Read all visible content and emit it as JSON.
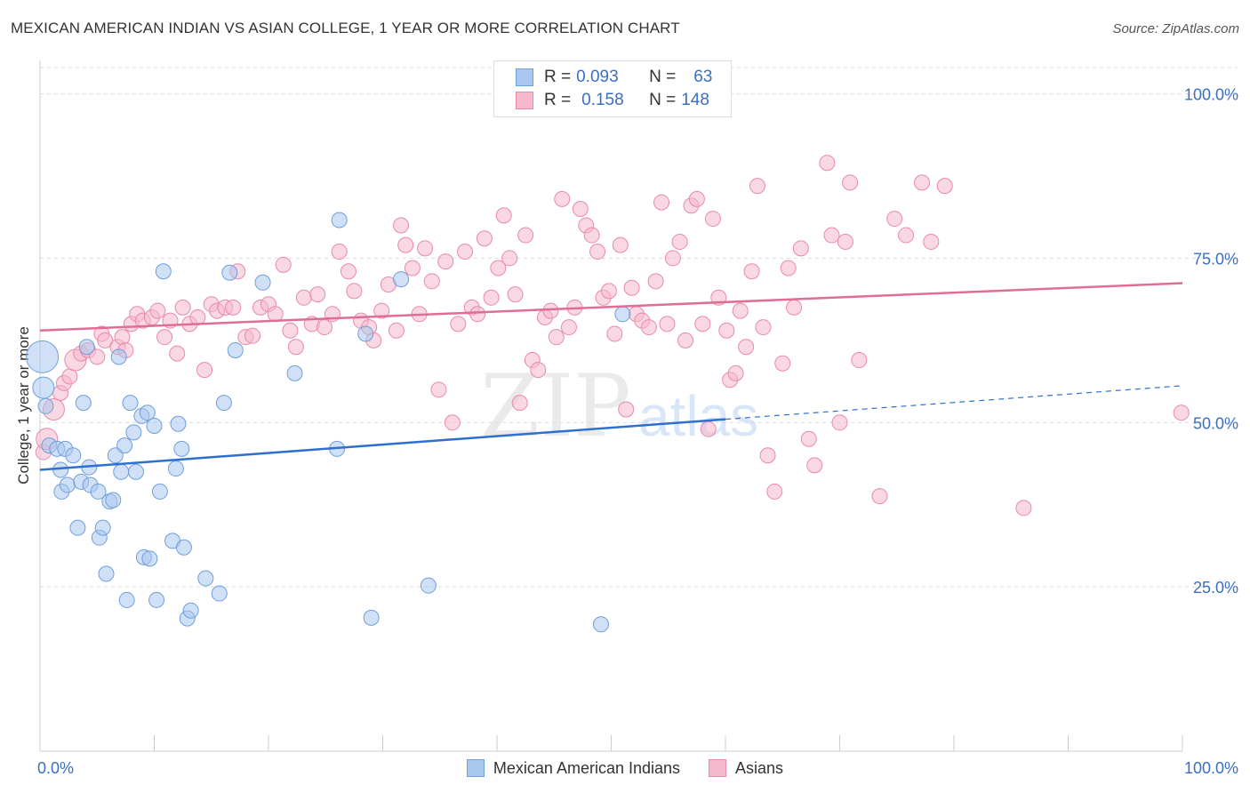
{
  "title": "MEXICAN AMERICAN INDIAN VS ASIAN COLLEGE, 1 YEAR OR MORE CORRELATION CHART",
  "source": "Source: ZipAtlas.com",
  "watermark": {
    "zip": "ZIP",
    "atlas": "atlas"
  },
  "legend": {
    "rows": [
      {
        "r_label": "R =",
        "r_value": "0.093",
        "n_label": "N =",
        "n_value": "63"
      },
      {
        "r_label": "R =",
        "r_value": "0.158",
        "n_label": "N =",
        "n_value": "148"
      }
    ]
  },
  "colors": {
    "blue_fill": "#a9c7ef",
    "blue_stroke": "#6f9fdc",
    "blue_line": "#2f6fcf",
    "pink_fill": "#f6b8cc",
    "pink_stroke": "#e88aa8",
    "pink_line": "#e06d96",
    "tick_text": "#3a6fc4",
    "grid": "#dddddd"
  },
  "chart_data": {
    "type": "scatter",
    "title": "MEXICAN AMERICAN INDIAN VS ASIAN COLLEGE, 1 YEAR OR MORE CORRELATION CHART",
    "xlabel": "",
    "ylabel": "College, 1 year or more",
    "xlim": [
      0,
      100
    ],
    "ylim": [
      0,
      104
    ],
    "x_tick_labels": [
      "0.0%",
      "100.0%"
    ],
    "y_tick_labels": [
      "25.0%",
      "50.0%",
      "75.0%",
      "100.0%"
    ],
    "y_ticks": [
      25,
      50,
      75,
      100
    ],
    "grid": true,
    "legend_position": "bottom",
    "series": [
      {
        "name": "Mexican American Indians",
        "color": "#a9c7ef",
        "trend": {
          "x0": 0,
          "y0": 42.8,
          "x1": 60,
          "y1": 50.5,
          "dash_to_x": 100,
          "dash_to_y": 55.6
        },
        "points": [
          [
            0.2,
            60,
            3
          ],
          [
            0.3,
            55.3,
            2
          ],
          [
            0.5,
            52.5,
            1
          ],
          [
            0.8,
            46.5,
            1
          ],
          [
            1.5,
            46,
            1
          ],
          [
            1.8,
            42.8,
            1
          ],
          [
            1.9,
            39.5,
            1
          ],
          [
            2.2,
            46,
            1
          ],
          [
            2.4,
            40.5,
            1
          ],
          [
            2.9,
            45,
            1
          ],
          [
            3.3,
            34,
            1
          ],
          [
            3.6,
            41,
            1
          ],
          [
            3.8,
            53,
            1
          ],
          [
            4.1,
            61.5,
            1
          ],
          [
            4.3,
            43.2,
            1
          ],
          [
            4.4,
            40.5,
            1
          ],
          [
            5.1,
            39.5,
            1
          ],
          [
            5.2,
            32.5,
            1
          ],
          [
            5.5,
            34,
            1
          ],
          [
            5.8,
            27,
            1
          ],
          [
            6.1,
            38,
            1
          ],
          [
            6.4,
            38.2,
            1
          ],
          [
            6.6,
            45,
            1
          ],
          [
            6.9,
            60,
            1
          ],
          [
            7.1,
            42.5,
            1
          ],
          [
            7.4,
            46.5,
            1
          ],
          [
            7.6,
            23,
            1
          ],
          [
            7.9,
            53,
            1
          ],
          [
            8.2,
            48.5,
            1
          ],
          [
            8.4,
            42.5,
            1
          ],
          [
            8.9,
            51,
            1
          ],
          [
            9.1,
            29.5,
            1
          ],
          [
            9.4,
            51.5,
            1
          ],
          [
            9.6,
            29.3,
            1
          ],
          [
            10,
            49.5,
            1
          ],
          [
            10.2,
            23,
            1
          ],
          [
            10.5,
            39.5,
            1
          ],
          [
            10.8,
            73,
            1
          ],
          [
            11.6,
            32,
            1
          ],
          [
            11.9,
            43,
            1
          ],
          [
            12.1,
            49.8,
            1
          ],
          [
            12.4,
            46,
            1
          ],
          [
            12.6,
            31,
            1
          ],
          [
            12.9,
            20.2,
            1
          ],
          [
            13.2,
            21.4,
            1
          ],
          [
            14.5,
            26.3,
            1
          ],
          [
            15.7,
            24,
            1
          ],
          [
            16.1,
            53,
            1
          ],
          [
            16.6,
            72.8,
            1
          ],
          [
            17.1,
            61,
            1
          ],
          [
            19.5,
            71.3,
            1
          ],
          [
            22.3,
            57.5,
            1
          ],
          [
            26,
            46,
            1
          ],
          [
            26.2,
            80.8,
            1
          ],
          [
            28.5,
            63.5,
            1
          ],
          [
            29,
            20.3,
            1
          ],
          [
            31.6,
            71.8,
            1
          ],
          [
            34,
            25.2,
            1
          ],
          [
            49.1,
            19.3,
            1
          ],
          [
            51,
            66.5,
            1
          ]
        ]
      },
      {
        "name": "Asians",
        "color": "#f6b8cc",
        "trend": {
          "x0": 0,
          "y0": 64,
          "x1": 100,
          "y1": 71.2
        },
        "points": [
          [
            0.3,
            45.5,
            1
          ],
          [
            0.6,
            47.5,
            2
          ],
          [
            1.2,
            52,
            2
          ],
          [
            1.8,
            54.5,
            1
          ],
          [
            2.1,
            56,
            1
          ],
          [
            2.6,
            57,
            1
          ],
          [
            3.1,
            59.5,
            2
          ],
          [
            3.6,
            60.5,
            1
          ],
          [
            4.2,
            61,
            1
          ],
          [
            5,
            60,
            1
          ],
          [
            5.4,
            63.5,
            1
          ],
          [
            5.7,
            62.5,
            1
          ],
          [
            6.8,
            61.5,
            1
          ],
          [
            7.2,
            63,
            1
          ],
          [
            7.5,
            61,
            1
          ],
          [
            8,
            65,
            1
          ],
          [
            8.5,
            66.5,
            1
          ],
          [
            9,
            65.5,
            1
          ],
          [
            9.8,
            66,
            1
          ],
          [
            10.3,
            67,
            1
          ],
          [
            10.9,
            63,
            1
          ],
          [
            11.4,
            65.5,
            1
          ],
          [
            12,
            60.5,
            1
          ],
          [
            12.5,
            67.5,
            1
          ],
          [
            13.1,
            65,
            1
          ],
          [
            13.8,
            66,
            1
          ],
          [
            14.4,
            58,
            1
          ],
          [
            15,
            68,
            1
          ],
          [
            15.5,
            67,
            1
          ],
          [
            16.2,
            67.5,
            1
          ],
          [
            16.9,
            67.5,
            1
          ],
          [
            17.3,
            73,
            1
          ],
          [
            18,
            63,
            1
          ],
          [
            18.6,
            63.2,
            1
          ],
          [
            19.3,
            67.5,
            1
          ],
          [
            20,
            68,
            1
          ],
          [
            20.6,
            66.5,
            1
          ],
          [
            21.3,
            74,
            1
          ],
          [
            21.9,
            64,
            1
          ],
          [
            22.4,
            61.5,
            1
          ],
          [
            23.1,
            69,
            1
          ],
          [
            23.8,
            65,
            1
          ],
          [
            24.3,
            69.5,
            1
          ],
          [
            24.9,
            64.5,
            1
          ],
          [
            25.6,
            66.5,
            1
          ],
          [
            26.2,
            76,
            1
          ],
          [
            27,
            73,
            1
          ],
          [
            27.5,
            70,
            1
          ],
          [
            28.1,
            65.5,
            1
          ],
          [
            28.8,
            64.5,
            1
          ],
          [
            29.2,
            62.5,
            1
          ],
          [
            29.9,
            67,
            1
          ],
          [
            30.5,
            71,
            1
          ],
          [
            31.2,
            64,
            1
          ],
          [
            31.6,
            80,
            1
          ],
          [
            32,
            77,
            1
          ],
          [
            32.6,
            73.5,
            1
          ],
          [
            33.2,
            66.5,
            1
          ],
          [
            33.7,
            76.5,
            1
          ],
          [
            34.3,
            71.5,
            1
          ],
          [
            34.9,
            55,
            1
          ],
          [
            35.5,
            74.5,
            1
          ],
          [
            36.1,
            50,
            1
          ],
          [
            36.6,
            65,
            1
          ],
          [
            37.2,
            76,
            1
          ],
          [
            37.8,
            67.5,
            1
          ],
          [
            38.3,
            66.5,
            1
          ],
          [
            38.9,
            78,
            1
          ],
          [
            39.5,
            69,
            1
          ],
          [
            40.1,
            73.5,
            1
          ],
          [
            40.6,
            81.5,
            1
          ],
          [
            41.1,
            75,
            1
          ],
          [
            41.6,
            69.5,
            1
          ],
          [
            42,
            53,
            1
          ],
          [
            42.5,
            78.5,
            1
          ],
          [
            43.1,
            59.5,
            1
          ],
          [
            43.6,
            58,
            1
          ],
          [
            44.2,
            66,
            1
          ],
          [
            44.7,
            67,
            1
          ],
          [
            45.2,
            63,
            1
          ],
          [
            45.7,
            84,
            1
          ],
          [
            46.3,
            64.5,
            1
          ],
          [
            46.8,
            67.5,
            1
          ],
          [
            47.3,
            82.5,
            1
          ],
          [
            47.8,
            80,
            1
          ],
          [
            48.3,
            78.5,
            1
          ],
          [
            48.8,
            76,
            1
          ],
          [
            49.3,
            69,
            1
          ],
          [
            49.8,
            70,
            1
          ],
          [
            50.3,
            63.5,
            1
          ],
          [
            50.8,
            77,
            1
          ],
          [
            51.3,
            52,
            1
          ],
          [
            51.8,
            70.5,
            1
          ],
          [
            52.2,
            66.5,
            1
          ],
          [
            52.7,
            65.5,
            1
          ],
          [
            53.3,
            64.5,
            1
          ],
          [
            53.9,
            71.5,
            1
          ],
          [
            54.4,
            83.5,
            1
          ],
          [
            54.9,
            65,
            1
          ],
          [
            55.4,
            75,
            1
          ],
          [
            56,
            77.5,
            1
          ],
          [
            56.5,
            62.5,
            1
          ],
          [
            57,
            83,
            1
          ],
          [
            57.5,
            84,
            1
          ],
          [
            58,
            65,
            1
          ],
          [
            58.5,
            49,
            1
          ],
          [
            58.9,
            81,
            1
          ],
          [
            59.4,
            69,
            1
          ],
          [
            60.1,
            64,
            1
          ],
          [
            60.4,
            56.5,
            1
          ],
          [
            60.9,
            57.5,
            1
          ],
          [
            61.3,
            67,
            1
          ],
          [
            61.8,
            61.5,
            1
          ],
          [
            62.3,
            73,
            1
          ],
          [
            62.8,
            86,
            1
          ],
          [
            63.3,
            64.5,
            1
          ],
          [
            63.7,
            45,
            1
          ],
          [
            64.3,
            39.5,
            1
          ],
          [
            65,
            59,
            1
          ],
          [
            65.5,
            73.5,
            1
          ],
          [
            66,
            67.5,
            1
          ],
          [
            66.6,
            76.5,
            1
          ],
          [
            67.3,
            47.5,
            1
          ],
          [
            67.8,
            43.5,
            1
          ],
          [
            68.9,
            89.5,
            1
          ],
          [
            69.3,
            78.5,
            1
          ],
          [
            70,
            50,
            1
          ],
          [
            70.5,
            77.5,
            1
          ],
          [
            70.9,
            86.5,
            1
          ],
          [
            71.7,
            59.5,
            1
          ],
          [
            73.5,
            38.8,
            1
          ],
          [
            74.8,
            81,
            1
          ],
          [
            75.8,
            78.5,
            1
          ],
          [
            77.2,
            86.5,
            1
          ],
          [
            78,
            77.5,
            1
          ],
          [
            79.2,
            86,
            1
          ],
          [
            86.1,
            37,
            1
          ],
          [
            99.9,
            51.5,
            1
          ]
        ]
      }
    ]
  }
}
